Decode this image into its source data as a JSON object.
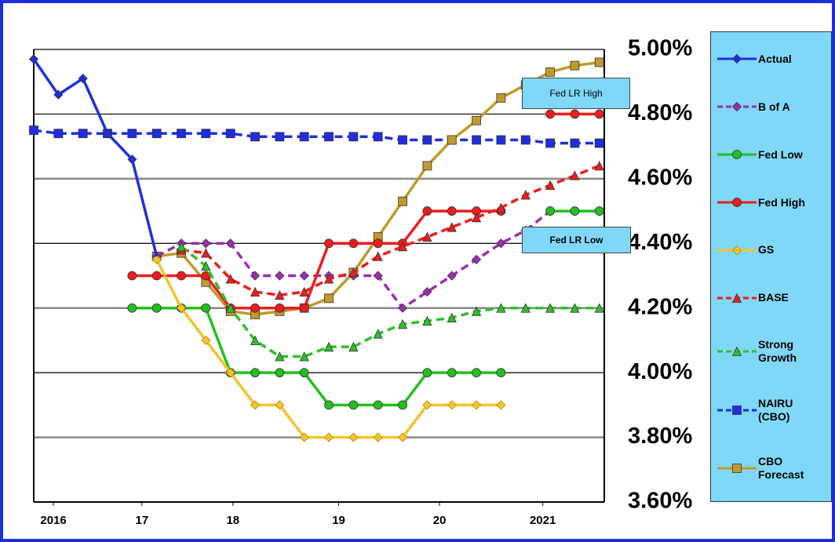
{
  "chart_data": {
    "type": "line",
    "x": [
      0,
      1,
      2,
      3,
      4,
      5,
      6,
      7,
      8,
      9,
      10,
      11,
      12,
      13,
      14,
      15,
      16,
      17,
      18,
      19,
      20,
      21,
      22,
      23
    ],
    "xlim": [
      0,
      23.2
    ],
    "xticks": [
      {
        "value": 0.8,
        "label": "2016"
      },
      {
        "value": 4.4,
        "label": "17"
      },
      {
        "value": 8.1,
        "label": "18"
      },
      {
        "value": 12.4,
        "label": "19"
      },
      {
        "value": 16.5,
        "label": "20"
      },
      {
        "value": 20.7,
        "label": "2021"
      }
    ],
    "ylim": [
      3.6,
      5.0
    ],
    "yticks": [
      {
        "value": 5.0,
        "label": "5.00%"
      },
      {
        "value": 4.8,
        "label": "4.80%"
      },
      {
        "value": 4.6,
        "label": "4.60%"
      },
      {
        "value": 4.4,
        "label": "4.40%"
      },
      {
        "value": 4.2,
        "label": "4.20%"
      },
      {
        "value": 4.0,
        "label": "4.00%"
      },
      {
        "value": 3.8,
        "label": "3.80%"
      },
      {
        "value": 3.6,
        "label": "3.60%"
      }
    ],
    "grid": true,
    "legend": "right",
    "annotations": [
      "Fed LR High",
      "Fed LR Low"
    ],
    "series": [
      {
        "name": "Actual",
        "color": "#1f2ee0",
        "marker": "diamond",
        "dashed": false,
        "values": [
          4.97,
          4.86,
          4.91,
          4.74,
          4.66,
          4.36,
          null,
          null,
          null,
          null,
          null,
          null,
          null,
          null,
          null,
          null,
          null,
          null,
          null,
          null,
          null,
          null,
          null,
          null
        ]
      },
      {
        "name": "B of A",
        "color": "#9b2fae",
        "marker": "diamond",
        "dashed": true,
        "values": [
          null,
          null,
          null,
          null,
          null,
          4.36,
          4.4,
          4.4,
          4.4,
          4.3,
          4.3,
          4.3,
          4.3,
          4.3,
          4.3,
          4.2,
          4.25,
          4.3,
          4.35,
          4.4,
          4.44,
          4.5,
          null,
          null
        ]
      },
      {
        "name": "Fed Low",
        "color": "#22c01e",
        "marker": "circle",
        "dashed": false,
        "values": [
          null,
          null,
          null,
          null,
          4.2,
          4.2,
          4.2,
          4.2,
          4.0,
          4.0,
          4.0,
          4.0,
          3.9,
          3.9,
          3.9,
          3.9,
          4.0,
          4.0,
          4.0,
          4.0,
          null,
          4.5,
          4.5,
          4.5
        ]
      },
      {
        "name": "Fed High",
        "color": "#ee1c1c",
        "marker": "circle",
        "dashed": false,
        "values": [
          null,
          null,
          null,
          null,
          4.3,
          4.3,
          4.3,
          4.3,
          4.2,
          4.2,
          4.2,
          4.2,
          4.4,
          4.4,
          4.4,
          4.4,
          4.5,
          4.5,
          4.5,
          4.5,
          null,
          4.8,
          4.8,
          4.8
        ]
      },
      {
        "name": "GS",
        "color": "#f8c22a",
        "marker": "diamond",
        "dashed": false,
        "values": [
          null,
          null,
          null,
          null,
          null,
          4.35,
          4.2,
          4.1,
          4.0,
          3.9,
          3.9,
          3.8,
          3.8,
          3.8,
          3.8,
          3.8,
          3.9,
          3.9,
          3.9,
          3.9,
          null,
          null,
          null,
          null
        ]
      },
      {
        "name": "BASE",
        "color": "#ee1c1c",
        "marker": "triangle",
        "dashed": true,
        "values": [
          null,
          null,
          null,
          null,
          null,
          null,
          4.38,
          4.37,
          4.29,
          4.25,
          4.24,
          4.25,
          4.29,
          4.31,
          4.36,
          4.39,
          4.42,
          4.45,
          4.48,
          4.51,
          4.55,
          4.58,
          4.61,
          4.64
        ]
      },
      {
        "name": "Strong Growth",
        "color": "#2ec02a",
        "marker": "triangle",
        "dashed": true,
        "values": [
          null,
          null,
          null,
          null,
          null,
          null,
          4.39,
          4.33,
          4.2,
          4.1,
          4.05,
          4.05,
          4.08,
          4.08,
          4.12,
          4.15,
          4.16,
          4.17,
          4.19,
          4.2,
          4.2,
          4.2,
          4.2,
          4.2
        ]
      },
      {
        "name": "NAIRU (CBO)",
        "color": "#1f2ee0",
        "marker": "square",
        "dashed": true,
        "values": [
          4.75,
          4.74,
          4.74,
          4.74,
          4.74,
          4.74,
          4.74,
          4.74,
          4.74,
          4.73,
          4.73,
          4.73,
          4.73,
          4.73,
          4.73,
          4.72,
          4.72,
          4.72,
          4.72,
          4.72,
          4.72,
          4.71,
          4.71,
          4.71
        ]
      },
      {
        "name": "CBO Forecast",
        "color": "#c09a2a",
        "marker": "square",
        "dashed": false,
        "values": [
          null,
          null,
          null,
          null,
          null,
          4.36,
          4.37,
          4.28,
          4.19,
          4.18,
          4.19,
          4.2,
          4.23,
          4.31,
          4.42,
          4.53,
          4.64,
          4.72,
          4.78,
          4.85,
          4.89,
          4.93,
          4.95,
          4.96
        ]
      }
    ]
  }
}
